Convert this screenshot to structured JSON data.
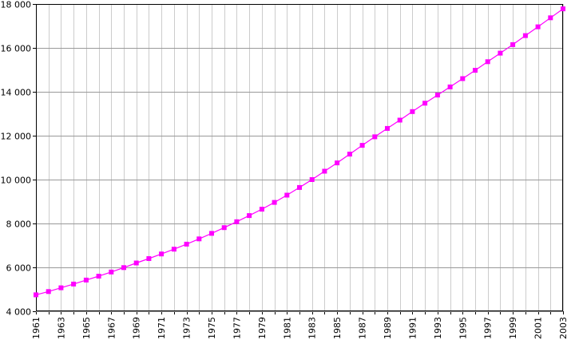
{
  "chart_data": {
    "type": "line",
    "title": "",
    "xlabel": "",
    "ylabel": "",
    "x": [
      1961,
      1962,
      1963,
      1964,
      1965,
      1966,
      1967,
      1968,
      1969,
      1970,
      1971,
      1972,
      1973,
      1974,
      1975,
      1976,
      1977,
      1978,
      1979,
      1980,
      1981,
      1982,
      1983,
      1984,
      1985,
      1986,
      1987,
      1988,
      1989,
      1990,
      1991,
      1992,
      1993,
      1994,
      1995,
      1996,
      1997,
      1998,
      1999,
      2000,
      2001,
      2002,
      2003
    ],
    "series": [
      {
        "name": "",
        "color": "#ff00ff",
        "values": [
          4750,
          4900,
          5070,
          5240,
          5420,
          5600,
          5790,
          5990,
          6200,
          6400,
          6610,
          6830,
          7060,
          7300,
          7550,
          7810,
          8080,
          8360,
          8650,
          8960,
          9290,
          9640,
          10000,
          10380,
          10760,
          11160,
          11560,
          11950,
          12330,
          12710,
          13100,
          13480,
          13850,
          14220,
          14600,
          14980,
          15370,
          15760,
          16150,
          16560,
          16960,
          17370,
          17780
        ]
      }
    ],
    "xlim": [
      1961,
      2003
    ],
    "ylim": [
      4000,
      18000
    ],
    "x_tick_labels": [
      "1961",
      "1963",
      "1965",
      "1967",
      "1969",
      "1971",
      "1973",
      "1975",
      "1977",
      "1979",
      "1981",
      "1983",
      "1985",
      "1987",
      "1989",
      "1991",
      "1993",
      "1995",
      "1997",
      "1999",
      "2001",
      "2003"
    ],
    "y_tick_values": [
      4000,
      6000,
      8000,
      10000,
      12000,
      14000,
      16000,
      18000
    ],
    "y_tick_labels": [
      "4 000",
      "6 000",
      "8 000",
      "10 000",
      "12 000",
      "14 000",
      "16 000",
      "18 000"
    ],
    "grid": true,
    "legend": "none"
  }
}
